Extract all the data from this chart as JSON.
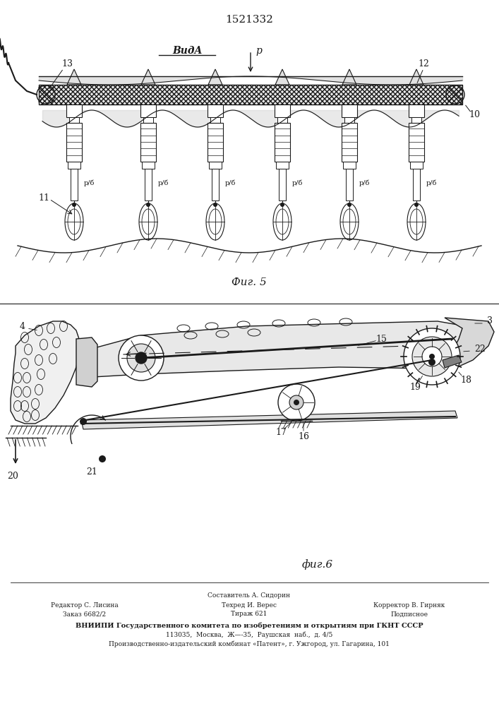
{
  "title_number": "1521332",
  "fig5_label": "Фиг. 5",
  "fig6_label": "фиг.6",
  "view_label": "ВидA",
  "bg_color": "#ffffff",
  "line_color": "#1a1a1a",
  "footer_line1": "Составитель А. Сидорин",
  "footer_line2_left": "Редактор С. Лисина",
  "footer_line2_mid": "Техред И. Верес",
  "footer_line2_right": "Корректор В. Гирняк",
  "footer_line3_left": "Заказ 6682/2",
  "footer_line3_mid": "Тираж 621",
  "footer_line3_right": "Подписное",
  "footer_vniiipi": "ВНИИПИ Государственного комитета по изобретениям и открытиям при ГКНТ СССР",
  "footer_address": "113035,  Москва,  Ж—-35,  Раушская  наб.,  д. 4/5",
  "footer_production": "Производственно-издательский комбинат «Патент», г. Ужгород, ул. Гагарина, 101"
}
